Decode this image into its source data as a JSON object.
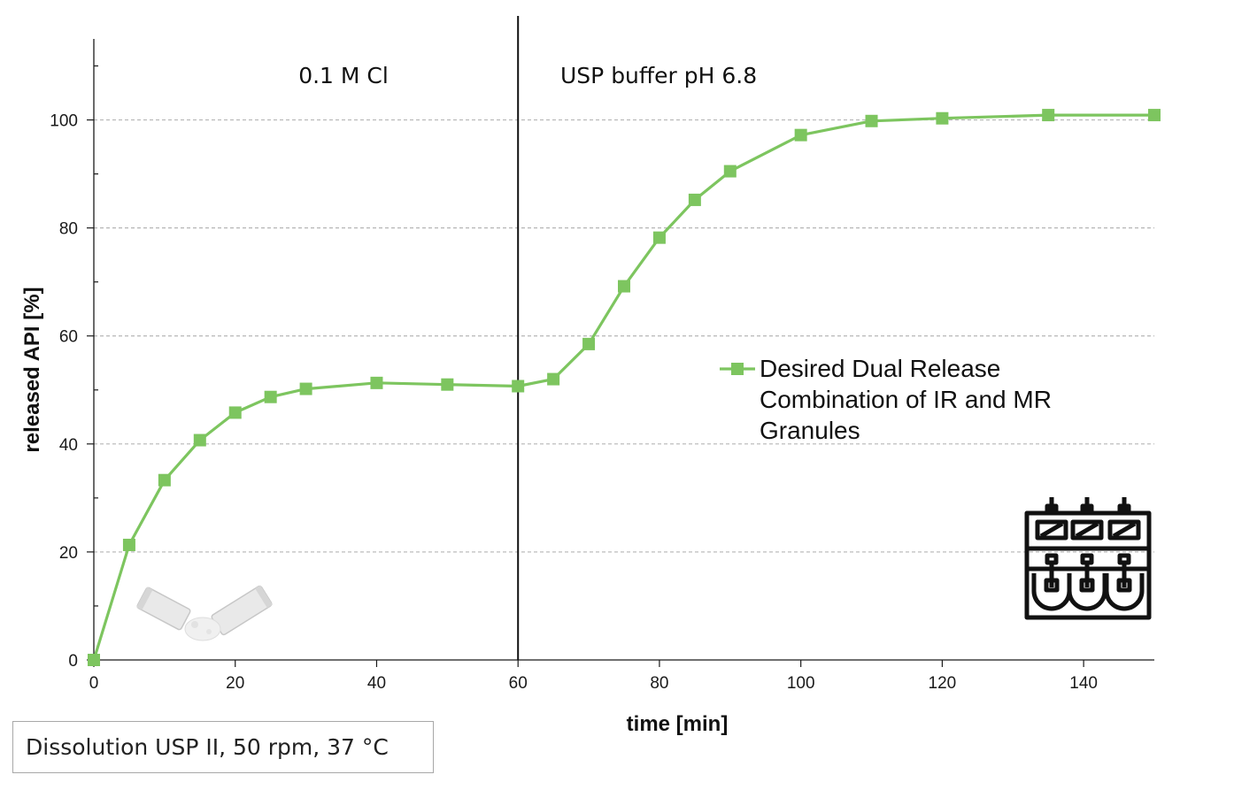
{
  "chart_data": {
    "type": "line",
    "xlabel": "time [min]",
    "ylabel": "released API [%]",
    "xlim": [
      0,
      150
    ],
    "ylim": [
      0,
      115
    ],
    "x_ticks": [
      0,
      20,
      40,
      60,
      80,
      100,
      120,
      140
    ],
    "y_ticks": [
      0,
      20,
      40,
      60,
      80,
      100
    ],
    "grid": "horizontal dashed at y ticks",
    "phase_boundary_x": 60,
    "phases": [
      {
        "label": "0.1 M Cl"
      },
      {
        "label": "USP buffer pH 6.8"
      }
    ],
    "legend_position": "center-right",
    "series": [
      {
        "name": "Desired Dual Release Combination of IR and MR Granules",
        "legend_lines": [
          "Desired Dual Release",
          "Combination of IR and MR",
          "Granules"
        ],
        "color": "#7dc55f",
        "marker": "square",
        "x": [
          0,
          5,
          10,
          15,
          20,
          25,
          30,
          40,
          50,
          60,
          65,
          70,
          75,
          80,
          85,
          90,
          100,
          110,
          120,
          135,
          150
        ],
        "y": [
          0,
          21.3,
          33.3,
          40.7,
          45.8,
          48.7,
          50.2,
          51.3,
          51.0,
          50.7,
          52.0,
          58.5,
          69.2,
          78.2,
          85.2,
          90.5,
          97.2,
          99.8,
          100.3,
          100.9,
          100.9
        ]
      }
    ]
  },
  "caption": "Dissolution USP II,  50 rpm, 37 °C",
  "icons": {
    "sachet": "powder-sachet-icon",
    "apparatus": "dissolution-apparatus-icon"
  }
}
